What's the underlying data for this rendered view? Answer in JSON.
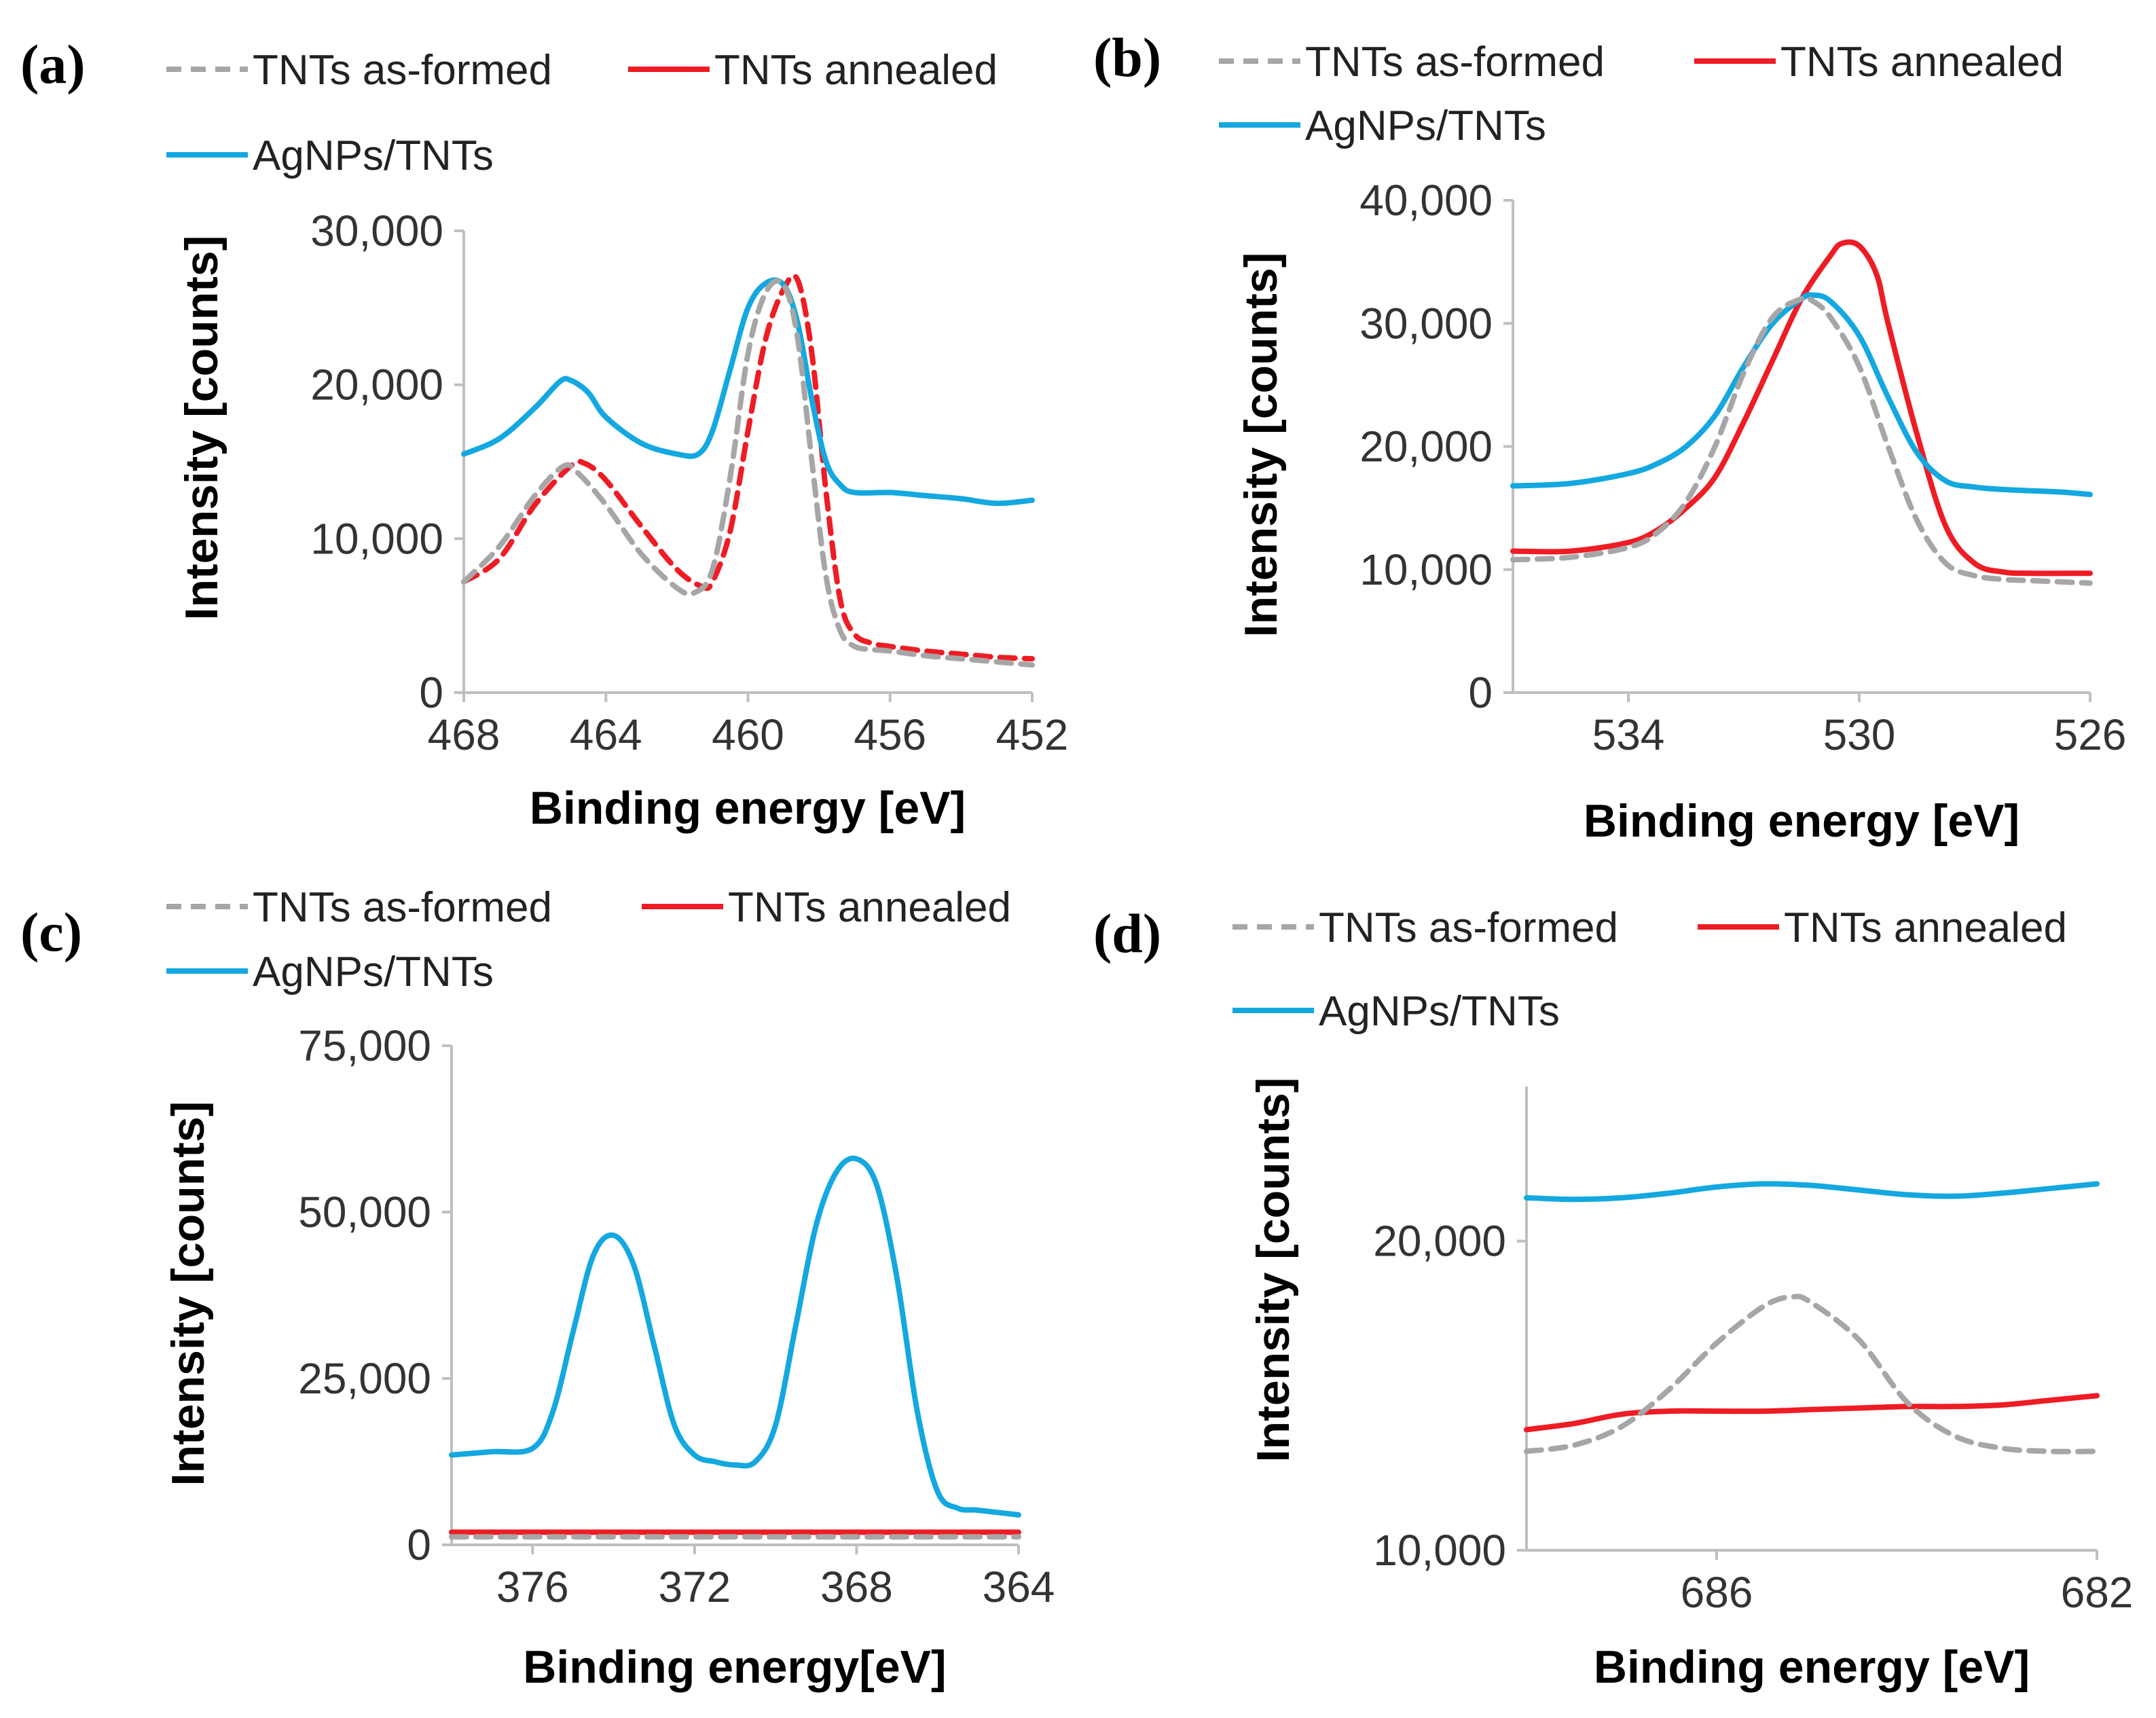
{
  "figure": {
    "legend": {
      "as_formed": "TNTs as-formed",
      "annealed": "TNTs annealed",
      "agnps": "AgNPs/TNTs"
    },
    "colors": {
      "as_formed": "#a6a6a6",
      "annealed": "#ee1c24",
      "agnps": "#13a8e0"
    }
  },
  "chart_data": [
    {
      "panel": "a",
      "panel_label": "(a)",
      "type": "line",
      "xlabel": "Binding energy [eV]",
      "ylabel": "Intensity [counts]",
      "xlim": [
        468,
        452
      ],
      "ylim": [
        0,
        30000
      ],
      "xticks": [
        468,
        464,
        460,
        456,
        452
      ],
      "xtick_labels": [
        "468",
        "464",
        "460",
        "456",
        "452"
      ],
      "yticks": [
        0,
        10000,
        20000,
        30000
      ],
      "ytick_labels": [
        "0",
        "10,000",
        "20,000",
        "30,000"
      ],
      "series": [
        {
          "key": "as_formed",
          "name": "TNTs as-formed",
          "dashed": true,
          "x": [
            468,
            467,
            466,
            465.2,
            464.8,
            464,
            463,
            462,
            461.5,
            461,
            460.5,
            460,
            459.5,
            459,
            458.6,
            458.2,
            457.8,
            457.4,
            457,
            456.5,
            456,
            455,
            454,
            453,
            452
          ],
          "y": [
            7200,
            9500,
            12800,
            14700,
            14300,
            12200,
            9000,
            6800,
            6500,
            8000,
            14000,
            22000,
            26000,
            26500,
            23000,
            15000,
            7500,
            4000,
            3000,
            2800,
            2700,
            2400,
            2200,
            2000,
            1800
          ]
        },
        {
          "key": "annealed",
          "name": "TNTs annealed",
          "dashed": true,
          "x": [
            468,
            467,
            466,
            465,
            464.6,
            464,
            463,
            462,
            461.3,
            461,
            460.5,
            460,
            459.5,
            459,
            458.6,
            458.2,
            457.8,
            457.4,
            457,
            456.5,
            456,
            455,
            454,
            453,
            452
          ],
          "y": [
            7200,
            8700,
            12200,
            14700,
            14900,
            13800,
            10800,
            8000,
            6900,
            7200,
            10500,
            17000,
            23000,
            26200,
            26800,
            22000,
            13000,
            6000,
            3800,
            3200,
            3000,
            2700,
            2500,
            2300,
            2200
          ]
        },
        {
          "key": "agnps",
          "name": "AgNPs/TNTs",
          "dashed": false,
          "x": [
            468,
            467,
            466,
            465.3,
            465,
            464.5,
            464,
            463,
            462,
            461.4,
            461,
            460.5,
            460,
            459.5,
            459,
            458.6,
            458.2,
            457.8,
            457.4,
            457,
            456,
            455,
            454,
            453,
            452
          ],
          "y": [
            15500,
            16500,
            18500,
            20200,
            20300,
            19500,
            17900,
            16200,
            15500,
            15500,
            17000,
            21000,
            25000,
            26600,
            26500,
            24000,
            19000,
            15000,
            13500,
            13000,
            13000,
            12800,
            12600,
            12300,
            12500
          ]
        }
      ]
    },
    {
      "panel": "b",
      "panel_label": "(b)",
      "type": "line",
      "xlabel": "Binding energy [eV]",
      "ylabel": "Intensity [counts]",
      "xlim": [
        536,
        526
      ],
      "ylim": [
        0,
        40000
      ],
      "xticks": [
        534,
        530,
        526
      ],
      "xtick_labels": [
        "534",
        "530",
        "526"
      ],
      "yticks": [
        0,
        10000,
        20000,
        30000,
        40000
      ],
      "ytick_labels": [
        "0",
        "10,000",
        "20,000",
        "30,000",
        "40,000"
      ],
      "series": [
        {
          "key": "as_formed",
          "name": "TNTs as-formed",
          "dashed": true,
          "x": [
            536,
            535,
            534,
            533.5,
            533,
            532.5,
            532,
            531.5,
            531,
            530.8,
            530.5,
            530,
            529.5,
            529,
            528.5,
            528,
            527.5,
            527,
            526.5,
            526
          ],
          "y": [
            10800,
            11000,
            11800,
            13000,
            15500,
            20000,
            26000,
            30500,
            32000,
            31800,
            30500,
            26500,
            20000,
            14000,
            10500,
            9500,
            9200,
            9100,
            9000,
            8900
          ]
        },
        {
          "key": "annealed",
          "name": "TNTs annealed",
          "dashed": false,
          "x": [
            536,
            535,
            534,
            533.5,
            533,
            532.5,
            532,
            531.5,
            531,
            530.5,
            530.3,
            530,
            529.7,
            529.5,
            529,
            528.5,
            528,
            527.5,
            527,
            526
          ],
          "y": [
            11500,
            11500,
            12200,
            13200,
            15000,
            17500,
            22000,
            27000,
            32000,
            35500,
            36500,
            36300,
            34000,
            30000,
            21000,
            13500,
            10500,
            9800,
            9700,
            9700
          ]
        },
        {
          "key": "agnps",
          "name": "AgNPs/TNTs",
          "dashed": false,
          "x": [
            536,
            535,
            534,
            533.5,
            533,
            532.5,
            532,
            531.5,
            531,
            530.8,
            530.5,
            530,
            529.5,
            529,
            528.5,
            528,
            527.5,
            527,
            526.5,
            526
          ],
          "y": [
            16800,
            17000,
            17800,
            18600,
            20000,
            22500,
            26500,
            30000,
            32000,
            32300,
            31800,
            29000,
            24000,
            19500,
            17200,
            16700,
            16500,
            16400,
            16300,
            16100
          ]
        }
      ]
    },
    {
      "panel": "c",
      "panel_label": "(c)",
      "type": "line",
      "xlabel": "Binding energy[eV]",
      "ylabel": "Intensity [counts]",
      "xlim": [
        378,
        364
      ],
      "ylim": [
        0,
        75000
      ],
      "xticks": [
        376,
        372,
        368,
        364
      ],
      "xtick_labels": [
        "376",
        "372",
        "368",
        "364"
      ],
      "yticks": [
        0,
        25000,
        50000,
        75000
      ],
      "ytick_labels": [
        "0",
        "25,000",
        "50,000",
        "75,000"
      ],
      "series": [
        {
          "key": "as_formed",
          "name": "TNTs as-formed",
          "dashed": true,
          "x": [
            378,
            374,
            370,
            366,
            364
          ],
          "y": [
            1200,
            1200,
            1200,
            1200,
            1200
          ]
        },
        {
          "key": "annealed",
          "name": "TNTs annealed",
          "dashed": false,
          "x": [
            378,
            374,
            370,
            366,
            364
          ],
          "y": [
            1900,
            1900,
            1900,
            1900,
            1900
          ]
        },
        {
          "key": "agnps",
          "name": "AgNPs/TNTs",
          "dashed": false,
          "x": [
            378,
            377,
            376,
            375.5,
            375,
            374.5,
            374,
            373.5,
            373,
            372.5,
            372,
            371.5,
            371,
            370.5,
            370,
            369.5,
            369,
            368.5,
            368,
            367.5,
            367,
            366.5,
            366,
            365.5,
            365,
            364
          ],
          "y": [
            13500,
            14000,
            14500,
            20000,
            32000,
            43500,
            46500,
            42000,
            30000,
            18000,
            13500,
            12500,
            12000,
            12500,
            18000,
            33000,
            48000,
            56000,
            58000,
            54000,
            40000,
            20000,
            8000,
            5500,
            5200,
            4500
          ]
        }
      ]
    },
    {
      "panel": "d",
      "panel_label": "(d)",
      "type": "line",
      "xlabel": "Binding energy [eV]",
      "ylabel": "Intensity [counts]",
      "xlim": [
        688,
        682
      ],
      "ylim": [
        10000,
        25000
      ],
      "xticks": [
        686,
        682
      ],
      "xtick_labels": [
        "686",
        "682"
      ],
      "yticks": [
        10000,
        20000
      ],
      "ytick_labels": [
        "10,000",
        "20,000"
      ],
      "series": [
        {
          "key": "as_formed",
          "name": "TNTs as-formed",
          "dashed": true,
          "x": [
            688,
            687.5,
            687,
            686.5,
            686,
            685.5,
            685.2,
            685,
            684.5,
            684,
            683.5,
            683,
            682.5,
            682
          ],
          "y": [
            13200,
            13400,
            14000,
            15200,
            16700,
            17900,
            18200,
            18000,
            16800,
            14800,
            13700,
            13300,
            13200,
            13200
          ]
        },
        {
          "key": "annealed",
          "name": "TNTs annealed",
          "dashed": false,
          "x": [
            688,
            687.5,
            687,
            686.5,
            686,
            685.5,
            685,
            684.5,
            684,
            683.5,
            683,
            682.5,
            682
          ],
          "y": [
            13900,
            14100,
            14400,
            14500,
            14500,
            14500,
            14550,
            14600,
            14650,
            14650,
            14700,
            14850,
            15000
          ]
        },
        {
          "key": "agnps",
          "name": "AgNPs/TNTs",
          "dashed": false,
          "x": [
            688,
            687.5,
            687,
            686.5,
            686,
            685.5,
            685,
            684.5,
            684,
            683.5,
            683,
            682.5,
            682
          ],
          "y": [
            21400,
            21350,
            21400,
            21550,
            21750,
            21850,
            21800,
            21650,
            21500,
            21450,
            21550,
            21700,
            21850
          ]
        }
      ]
    }
  ]
}
